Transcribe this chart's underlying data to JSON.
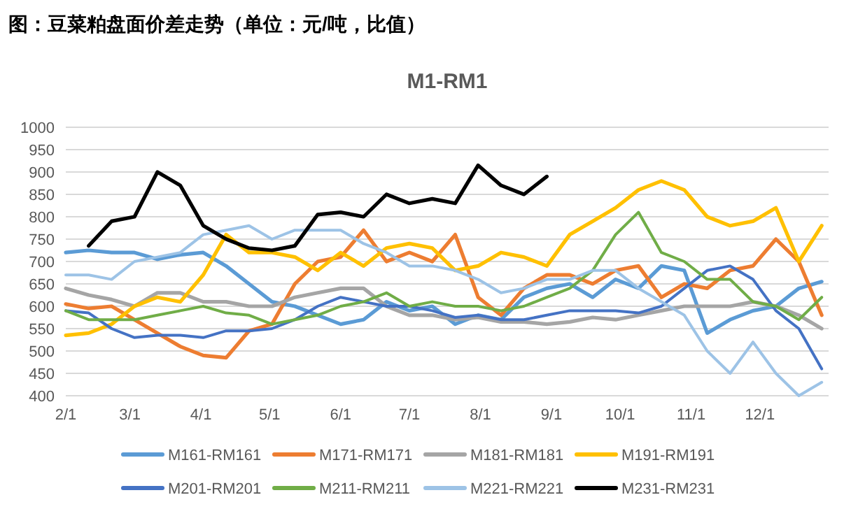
{
  "chart_data": {
    "type": "line",
    "title": "图：豆菜粕盘面价差走势（单位：元/吨，比值）",
    "subtitle": "M1-RM1",
    "x": [
      "--02-01",
      "--02-11",
      "--02-21",
      "--03-03",
      "--03-13",
      "--03-23",
      "--04-02",
      "--04-12",
      "--04-22",
      "--05-02",
      "--05-12",
      "--05-22",
      "--06-01",
      "--06-11",
      "--06-21",
      "--07-01",
      "--07-11",
      "--07-21",
      "--07-31",
      "--08-10",
      "--08-20",
      "--08-30",
      "--09-09",
      "--09-19",
      "--09-29",
      "--10-09",
      "--10-19",
      "--10-29",
      "--11-08",
      "--11-18",
      "--11-28",
      "--12-08",
      "--12-18",
      "--12-28"
    ],
    "series": [
      {
        "name": "M161-RM161",
        "color": "#5b9bd5",
        "values": [
          720,
          725,
          720,
          720,
          705,
          715,
          720,
          690,
          650,
          610,
          600,
          580,
          560,
          570,
          610,
          590,
          600,
          560,
          580,
          570,
          620,
          640,
          650,
          620,
          660,
          640,
          690,
          680,
          540,
          570,
          590,
          600,
          640,
          655
        ]
      },
      {
        "name": "M171-RM171",
        "color": "#ed7d31",
        "values": [
          605,
          595,
          600,
          570,
          540,
          510,
          490,
          485,
          545,
          560,
          650,
          700,
          710,
          770,
          700,
          720,
          700,
          760,
          620,
          580,
          640,
          670,
          670,
          650,
          680,
          690,
          620,
          650,
          640,
          680,
          690,
          750,
          700,
          580
        ]
      },
      {
        "name": "M181-RM181",
        "color": "#a5a5a5",
        "values": [
          640,
          625,
          615,
          600,
          630,
          630,
          610,
          610,
          600,
          600,
          620,
          630,
          640,
          640,
          600,
          580,
          580,
          570,
          575,
          565,
          565,
          560,
          565,
          575,
          570,
          580,
          590,
          600,
          600,
          600,
          610,
          600,
          580,
          550
        ]
      },
      {
        "name": "M191-RM191",
        "color": "#ffc000",
        "values": [
          535,
          540,
          560,
          600,
          620,
          610,
          670,
          760,
          720,
          720,
          710,
          680,
          720,
          690,
          730,
          740,
          730,
          680,
          690,
          720,
          710,
          690,
          760,
          790,
          820,
          860,
          880,
          860,
          800,
          780,
          790,
          820,
          700,
          780
        ]
      },
      {
        "name": "M201-RM201",
        "color": "#4472c4",
        "values": [
          590,
          585,
          550,
          530,
          535,
          535,
          530,
          545,
          545,
          550,
          570,
          600,
          620,
          610,
          600,
          600,
          590,
          575,
          580,
          570,
          570,
          580,
          590,
          590,
          590,
          585,
          600,
          640,
          680,
          690,
          660,
          590,
          550,
          460
        ]
      },
      {
        "name": "M211-RM211",
        "color": "#70ad47",
        "values": [
          590,
          570,
          570,
          570,
          580,
          590,
          600,
          585,
          580,
          560,
          570,
          580,
          600,
          610,
          630,
          600,
          610,
          600,
          600,
          590,
          600,
          620,
          640,
          680,
          760,
          810,
          720,
          700,
          660,
          660,
          610,
          600,
          570,
          620
        ]
      },
      {
        "name": "M221-RM221",
        "color": "#9dc3e6",
        "values": [
          670,
          670,
          660,
          700,
          710,
          720,
          760,
          770,
          780,
          750,
          770,
          770,
          770,
          740,
          720,
          690,
          690,
          680,
          660,
          630,
          640,
          660,
          660,
          680,
          680,
          640,
          610,
          580,
          500,
          450,
          520,
          450,
          400,
          430
        ]
      },
      {
        "name": "M231-RM231",
        "color": "#000000",
        "values": [
          null,
          735,
          790,
          800,
          900,
          870,
          780,
          750,
          730,
          725,
          735,
          805,
          810,
          800,
          850,
          830,
          840,
          830,
          915,
          870,
          850,
          890,
          null,
          null,
          null,
          null,
          null,
          null,
          null,
          null,
          null,
          null,
          null,
          null
        ]
      }
    ],
    "xlim": [
      "--02-01",
      "--12-31"
    ],
    "xticks": [
      {
        "value": "--02-01",
        "label": "2/1"
      },
      {
        "value": "--03-01",
        "label": "3/1"
      },
      {
        "value": "--04-01",
        "label": "4/1"
      },
      {
        "value": "--05-01",
        "label": "5/1"
      },
      {
        "value": "--06-01",
        "label": "6/1"
      },
      {
        "value": "--07-01",
        "label": "7/1"
      },
      {
        "value": "--08-01",
        "label": "8/1"
      },
      {
        "value": "--09-01",
        "label": "9/1"
      },
      {
        "value": "--10-01",
        "label": "10/1"
      },
      {
        "value": "--11-01",
        "label": "11/1"
      },
      {
        "value": "--12-01",
        "label": "12/1"
      }
    ],
    "ylim": [
      400,
      1000
    ],
    "yticks": [
      400,
      450,
      500,
      550,
      600,
      650,
      700,
      750,
      800,
      850,
      900,
      950,
      1000
    ],
    "grid": "y",
    "legend": "bottom"
  }
}
